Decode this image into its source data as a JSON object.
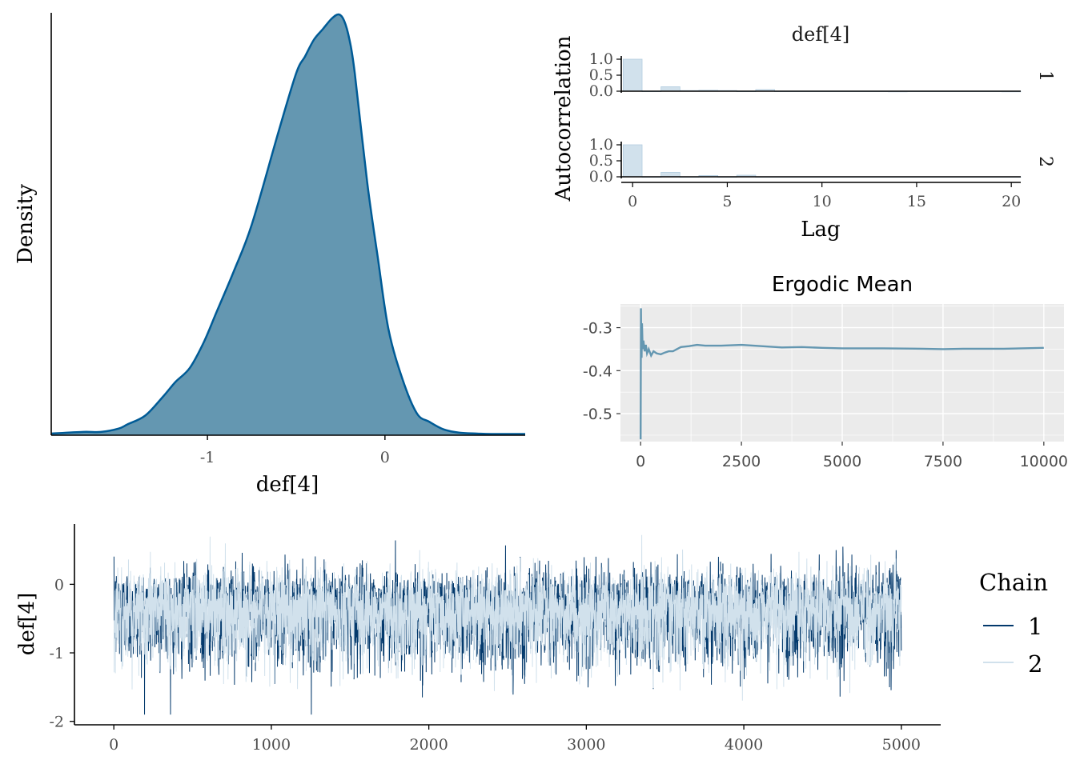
{
  "colors": {
    "density_fill": "#6497b1",
    "density_line": "#005b96",
    "chain1": "#03396c",
    "chain2": "#d1e1ec",
    "acf_bar": "#d1e1ec",
    "acf_bar_stroke": "#b3cde0",
    "ergodic_line": "#6497b1",
    "panel_bg": "#ebebeb"
  },
  "chart_data": [
    {
      "id": "density",
      "type": "area",
      "title": "",
      "xlabel": "def[4]",
      "ylabel": "Density",
      "xlim": [
        -1.88,
        0.79
      ],
      "ylim": [
        0,
        1.0
      ],
      "xticks": [
        "-1",
        "0"
      ],
      "xtick_values": [
        -1,
        0
      ],
      "grid": false,
      "x": [
        -1.88,
        -1.7,
        -1.6,
        -1.5,
        -1.45,
        -1.35,
        -1.25,
        -1.18,
        -1.1,
        -1.02,
        -0.95,
        -0.85,
        -0.75,
        -0.6,
        -0.5,
        -0.45,
        -0.4,
        -0.35,
        -0.3,
        -0.26,
        -0.23,
        -0.2,
        -0.17,
        -0.1,
        -0.04,
        0.02,
        0.1,
        0.18,
        0.25,
        0.33,
        0.42,
        0.52,
        0.6,
        0.79
      ],
      "y": [
        0.002,
        0.006,
        0.006,
        0.014,
        0.024,
        0.045,
        0.09,
        0.125,
        0.158,
        0.22,
        0.29,
        0.39,
        0.5,
        0.72,
        0.86,
        0.9,
        0.94,
        0.965,
        0.99,
        1.0,
        0.985,
        0.94,
        0.86,
        0.6,
        0.42,
        0.25,
        0.13,
        0.05,
        0.03,
        0.012,
        0.004,
        0.002,
        0.001,
        0.001
      ]
    },
    {
      "id": "autocorrelation",
      "type": "bar",
      "title": "def[4]",
      "xlabel": "Lag",
      "ylabel": "Autocorrelation",
      "xlim": [
        -0.6,
        20.5
      ],
      "ylim": [
        -0.05,
        1.0
      ],
      "xticks": [
        "0",
        "5",
        "10",
        "15",
        "20"
      ],
      "xtick_values": [
        0,
        5,
        10,
        15,
        20
      ],
      "yticks": [
        "0.0",
        "0.5",
        "1.0"
      ],
      "ytick_values": [
        0,
        0.5,
        1.0
      ],
      "facets": [
        {
          "label": "1",
          "lags": [
            0,
            1,
            2,
            3,
            4,
            5,
            6,
            7,
            8,
            9,
            10,
            11,
            12,
            13,
            14,
            15,
            16,
            17,
            18,
            19,
            20
          ],
          "values": [
            1.0,
            0.0,
            0.14,
            0.02,
            0.03,
            0.02,
            0.0,
            0.05,
            0.0,
            0.0,
            0.0,
            0.0,
            0.0,
            0.0,
            -0.02,
            0.0,
            0.0,
            0.0,
            0.0,
            0.0,
            -0.02
          ]
        },
        {
          "label": "2",
          "lags": [
            0,
            1,
            2,
            3,
            4,
            5,
            6,
            7,
            8,
            9,
            10,
            11,
            12,
            13,
            14,
            15,
            16,
            17,
            18,
            19,
            20
          ],
          "values": [
            1.0,
            0.0,
            0.14,
            0.0,
            0.04,
            0.0,
            0.05,
            0.0,
            0.0,
            0.0,
            0.0,
            0.0,
            0.0,
            0.0,
            0.0,
            0.0,
            0.0,
            0.0,
            0.0,
            0.0,
            0.0
          ]
        }
      ]
    },
    {
      "id": "ergodic_mean",
      "type": "line",
      "title": "Ergodic Mean",
      "xlabel": "",
      "ylabel": "",
      "xlim": [
        -500,
        10500
      ],
      "ylim": [
        -0.565,
        -0.245
      ],
      "xticks": [
        "0",
        "2500",
        "5000",
        "7500",
        "10000"
      ],
      "xtick_values": [
        0,
        2500,
        5000,
        7500,
        10000
      ],
      "yticks": [
        "-0.3",
        "-0.4",
        "-0.5"
      ],
      "ytick_values": [
        -0.3,
        -0.4,
        -0.5
      ],
      "grid": true,
      "x": [
        1,
        8,
        15,
        25,
        35,
        50,
        70,
        100,
        130,
        160,
        200,
        260,
        320,
        400,
        500,
        600,
        700,
        800,
        900,
        1000,
        1200,
        1400,
        1600,
        2000,
        2500,
        3000,
        3500,
        4000,
        4500,
        5000,
        6000,
        7000,
        7500,
        8000,
        9000,
        10000
      ],
      "y": [
        -0.56,
        -0.255,
        -0.32,
        -0.37,
        -0.29,
        -0.35,
        -0.33,
        -0.355,
        -0.34,
        -0.36,
        -0.35,
        -0.365,
        -0.355,
        -0.36,
        -0.362,
        -0.358,
        -0.355,
        -0.355,
        -0.35,
        -0.345,
        -0.343,
        -0.34,
        -0.342,
        -0.342,
        -0.34,
        -0.343,
        -0.346,
        -0.345,
        -0.347,
        -0.348,
        -0.348,
        -0.349,
        -0.35,
        -0.349,
        -0.349,
        -0.347
      ]
    },
    {
      "id": "trace",
      "type": "line",
      "title": "",
      "xlabel": "",
      "ylabel": "def[4]",
      "xlim": [
        -250,
        5250
      ],
      "ylim": [
        -2.05,
        0.88
      ],
      "xticks": [
        "0",
        "1000",
        "2000",
        "3000",
        "4000",
        "5000"
      ],
      "xtick_values": [
        0,
        1000,
        2000,
        3000,
        4000,
        5000
      ],
      "yticks": [
        "0",
        "-1",
        "-2"
      ],
      "ytick_values": [
        0,
        -1,
        -2
      ],
      "n_iter": 5000,
      "mean": -0.35,
      "sd": 0.32,
      "min": -1.9,
      "max": 0.72,
      "legend": {
        "title": "Chain",
        "position": "right",
        "entries": [
          "1",
          "2"
        ]
      },
      "series": [
        {
          "name": "1",
          "color": "#03396c"
        },
        {
          "name": "2",
          "color": "#d1e1ec"
        }
      ]
    }
  ]
}
